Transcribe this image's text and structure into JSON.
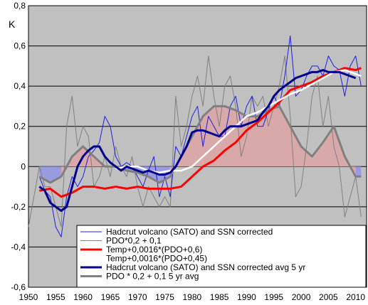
{
  "chart_data": {
    "type": "line",
    "title": "",
    "xlabel": "",
    "ylabel": "K",
    "xlim": [
      1950,
      2012
    ],
    "ylim": [
      -0.6,
      0.8
    ],
    "x_ticks": [
      "1950",
      "1955",
      "1960",
      "1965",
      "1970",
      "1975",
      "1980",
      "1985",
      "1990",
      "1995",
      "2000",
      "2005",
      "2010"
    ],
    "y_ticks": [
      "0,8",
      "0,6",
      "0,4",
      "0,2",
      "0",
      "-0,2",
      "-0,4",
      "-0,6"
    ],
    "grid": true,
    "background": "#c0c0c0",
    "legend_position": "bottom-right",
    "series": [
      {
        "name": "Hadcrut volcano (SATO) and SSN corrected",
        "color": "#1f1fe0",
        "x": [
          1952,
          1953,
          1954,
          1955,
          1956,
          1957,
          1958,
          1959,
          1960,
          1961,
          1962,
          1963,
          1964,
          1965,
          1966,
          1967,
          1968,
          1969,
          1970,
          1971,
          1972,
          1973,
          1974,
          1975,
          1976,
          1977,
          1978,
          1979,
          1980,
          1981,
          1982,
          1983,
          1984,
          1985,
          1986,
          1987,
          1988,
          1989,
          1990,
          1991,
          1992,
          1993,
          1994,
          1995,
          1996,
          1997,
          1998,
          1999,
          2000,
          2001,
          2002,
          2003,
          2004,
          2005,
          2006,
          2007,
          2008,
          2009,
          2010,
          2011
        ],
        "values": [
          -0.05,
          -0.12,
          -0.15,
          -0.3,
          -0.35,
          -0.15,
          -0.05,
          -0.1,
          -0.05,
          0.05,
          0.08,
          0.12,
          0.25,
          0.2,
          0.05,
          0.0,
          0.02,
          0.0,
          -0.05,
          -0.1,
          -0.02,
          0.05,
          -0.15,
          -0.05,
          -0.15,
          0.1,
          0.05,
          0.15,
          0.25,
          0.3,
          0.1,
          0.25,
          0.2,
          0.15,
          0.15,
          0.3,
          0.35,
          0.2,
          0.3,
          0.35,
          0.2,
          0.2,
          0.28,
          0.35,
          0.3,
          0.45,
          0.65,
          0.35,
          0.38,
          0.45,
          0.5,
          0.5,
          0.45,
          0.55,
          0.5,
          0.48,
          0.35,
          0.5,
          0.55,
          0.4
        ]
      },
      {
        "name": "PDO*0,2 + 0,1",
        "color": "#808080",
        "x": [
          1950,
          1951,
          1952,
          1953,
          1954,
          1955,
          1956,
          1957,
          1958,
          1959,
          1960,
          1961,
          1962,
          1963,
          1964,
          1965,
          1966,
          1967,
          1968,
          1969,
          1970,
          1971,
          1972,
          1973,
          1974,
          1975,
          1976,
          1977,
          1978,
          1979,
          1980,
          1981,
          1982,
          1983,
          1984,
          1985,
          1986,
          1987,
          1988,
          1989,
          1990,
          1991,
          1992,
          1993,
          1994,
          1995,
          1996,
          1997,
          1998,
          1999,
          2000,
          2001,
          2002,
          2003,
          2004,
          2005,
          2006,
          2007,
          2008,
          2009,
          2010,
          2011
        ],
        "values": [
          -0.3,
          -0.15,
          0.0,
          -0.1,
          -0.1,
          -0.2,
          -0.3,
          0.2,
          0.35,
          0.1,
          0.2,
          0.15,
          -0.1,
          -0.05,
          0.05,
          -0.05,
          0.1,
          0.0,
          -0.05,
          0.05,
          -0.1,
          -0.2,
          -0.1,
          -0.15,
          -0.2,
          -0.15,
          -0.2,
          0.35,
          0.1,
          0.2,
          0.35,
          0.45,
          0.3,
          0.55,
          0.35,
          0.2,
          0.4,
          0.45,
          0.3,
          0.05,
          0.15,
          0.35,
          0.3,
          0.35,
          0.2,
          0.3,
          0.4,
          0.55,
          0.25,
          -0.15,
          -0.1,
          0.1,
          0.35,
          0.45,
          0.2,
          0.35,
          0.1,
          0.0,
          -0.25,
          -0.15,
          -0.05,
          -0.25
        ]
      },
      {
        "name": "Temp+0,0016*(PDO+0,6)",
        "color": "#ff0000",
        "x": [
          1952,
          1954,
          1956,
          1958,
          1960,
          1962,
          1964,
          1966,
          1968,
          1970,
          1972,
          1974,
          1976,
          1978,
          1980,
          1982,
          1984,
          1986,
          1988,
          1990,
          1992,
          1994,
          1996,
          1998,
          2000,
          2002,
          2004,
          2006,
          2008,
          2010,
          2011
        ],
        "values": [
          -0.12,
          -0.11,
          -0.15,
          -0.13,
          -0.1,
          -0.1,
          -0.11,
          -0.1,
          -0.11,
          -0.1,
          -0.11,
          -0.11,
          -0.11,
          -0.1,
          -0.05,
          0.0,
          0.03,
          0.08,
          0.12,
          0.18,
          0.22,
          0.27,
          0.32,
          0.38,
          0.4,
          0.42,
          0.45,
          0.47,
          0.49,
          0.48,
          0.49
        ]
      },
      {
        "name": "Temp+0,0016*(PDO+0,45)",
        "color": "#ffffff",
        "x": [
          1966,
          1968,
          1970,
          1972,
          1974,
          1976,
          1978,
          1980,
          1982,
          1984,
          1986,
          1988,
          1990,
          1992,
          1994,
          1996,
          1998,
          2000,
          2002,
          2004,
          2006,
          2008,
          2010,
          2011
        ],
        "values": [
          -0.01,
          0.0,
          0.0,
          -0.02,
          -0.03,
          -0.02,
          -0.02,
          0.0,
          0.05,
          0.1,
          0.15,
          0.2,
          0.25,
          0.27,
          0.3,
          0.33,
          0.36,
          0.38,
          0.41,
          0.44,
          0.47,
          0.48,
          0.46,
          0.45
        ]
      },
      {
        "name": "Hadcrut volcano (SATO) and SSN corrected avg 5 yr",
        "color": "#00008b",
        "x": [
          1952,
          1953,
          1954,
          1955,
          1956,
          1957,
          1958,
          1959,
          1960,
          1961,
          1962,
          1963,
          1964,
          1965,
          1966,
          1967,
          1968,
          1969,
          1970,
          1971,
          1972,
          1973,
          1974,
          1975,
          1976,
          1977,
          1978,
          1979,
          1980,
          1981,
          1982,
          1983,
          1984,
          1985,
          1986,
          1987,
          1988,
          1989,
          1990,
          1991,
          1992,
          1993,
          1994,
          1995,
          1996,
          1997,
          1998,
          1999,
          2000,
          2001,
          2002,
          2003,
          2004,
          2005,
          2006,
          2007,
          2008,
          2009,
          2010
        ],
        "values": [
          -0.1,
          -0.12,
          -0.18,
          -0.2,
          -0.22,
          -0.2,
          -0.1,
          0.0,
          0.05,
          0.08,
          0.1,
          0.1,
          0.05,
          0.02,
          0.0,
          -0.02,
          0.0,
          -0.01,
          -0.02,
          -0.03,
          -0.02,
          -0.03,
          -0.04,
          -0.04,
          -0.03,
          0.0,
          0.05,
          0.1,
          0.17,
          0.18,
          0.18,
          0.17,
          0.16,
          0.15,
          0.18,
          0.2,
          0.2,
          0.2,
          0.21,
          0.22,
          0.23,
          0.27,
          0.3,
          0.35,
          0.38,
          0.4,
          0.42,
          0.44,
          0.45,
          0.46,
          0.47,
          0.47,
          0.48,
          0.47,
          0.47,
          0.47,
          0.46,
          0.45,
          0.44
        ]
      },
      {
        "name": "PDO  * 0,2 + 0,1      5 yr avg",
        "color": "#808080",
        "x": [
          1952,
          1954,
          1956,
          1958,
          1960,
          1962,
          1964,
          1966,
          1968,
          1970,
          1972,
          1974,
          1976,
          1978,
          1980,
          1982,
          1984,
          1986,
          1988,
          1990,
          1992,
          1994,
          1996,
          1998,
          2000,
          2002,
          2004,
          2006,
          2008,
          2010,
          2011
        ],
        "values": [
          -0.05,
          -0.08,
          -0.05,
          0.05,
          0.1,
          0.05,
          0.0,
          0.0,
          -0.02,
          -0.03,
          -0.05,
          -0.08,
          -0.05,
          0.05,
          0.15,
          0.25,
          0.3,
          0.3,
          0.28,
          0.25,
          0.25,
          0.28,
          0.3,
          0.2,
          0.1,
          0.05,
          0.12,
          0.2,
          0.05,
          -0.05,
          -0.05
        ]
      }
    ],
    "fill_colors": {
      "positive": "#d9a8a8",
      "negative": "#9a9ae0"
    }
  }
}
